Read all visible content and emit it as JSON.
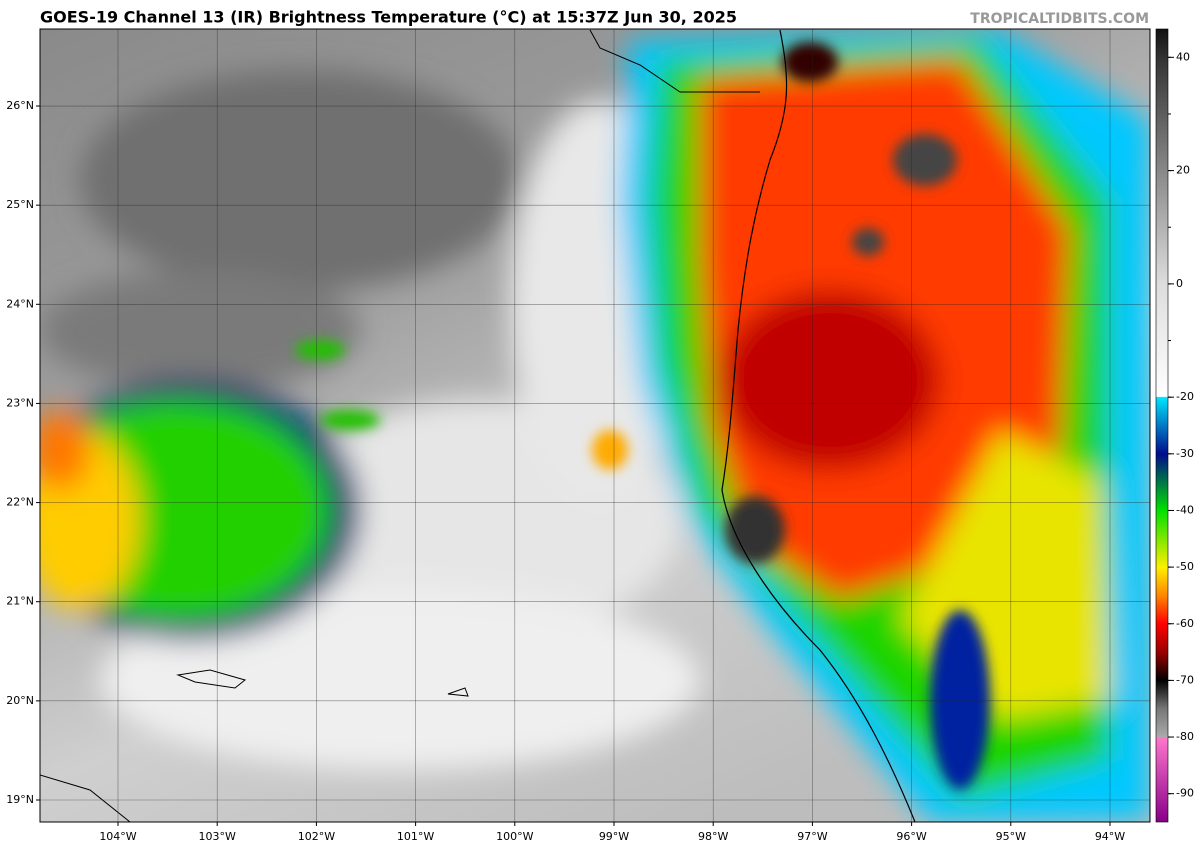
{
  "header": {
    "title": "GOES-19 Channel 13 (IR) Brightness Temperature (°C) at 15:37Z Jun 30, 2025",
    "credit": "TROPICALTIDBITS.COM"
  },
  "map": {
    "lat_labels": [
      "19°N",
      "20°N",
      "21°N",
      "22°N",
      "23°N",
      "24°N",
      "25°N",
      "26°N"
    ],
    "lon_labels": [
      "104°W",
      "103°W",
      "102°W",
      "101°W",
      "100°W",
      "99°W",
      "98°W",
      "97°W",
      "96°W",
      "95°W",
      "94°W"
    ]
  },
  "colorbar": {
    "limits": [
      45,
      -95
    ],
    "ticks": [
      40,
      30,
      20,
      10,
      0,
      -10,
      -20,
      -30,
      -40,
      -50,
      -60,
      -70,
      -80,
      -90
    ],
    "labeled_ticks": [
      40,
      20,
      0,
      -20,
      -30,
      -40,
      -50,
      -60,
      -70,
      -80,
      -90
    ]
  }
}
